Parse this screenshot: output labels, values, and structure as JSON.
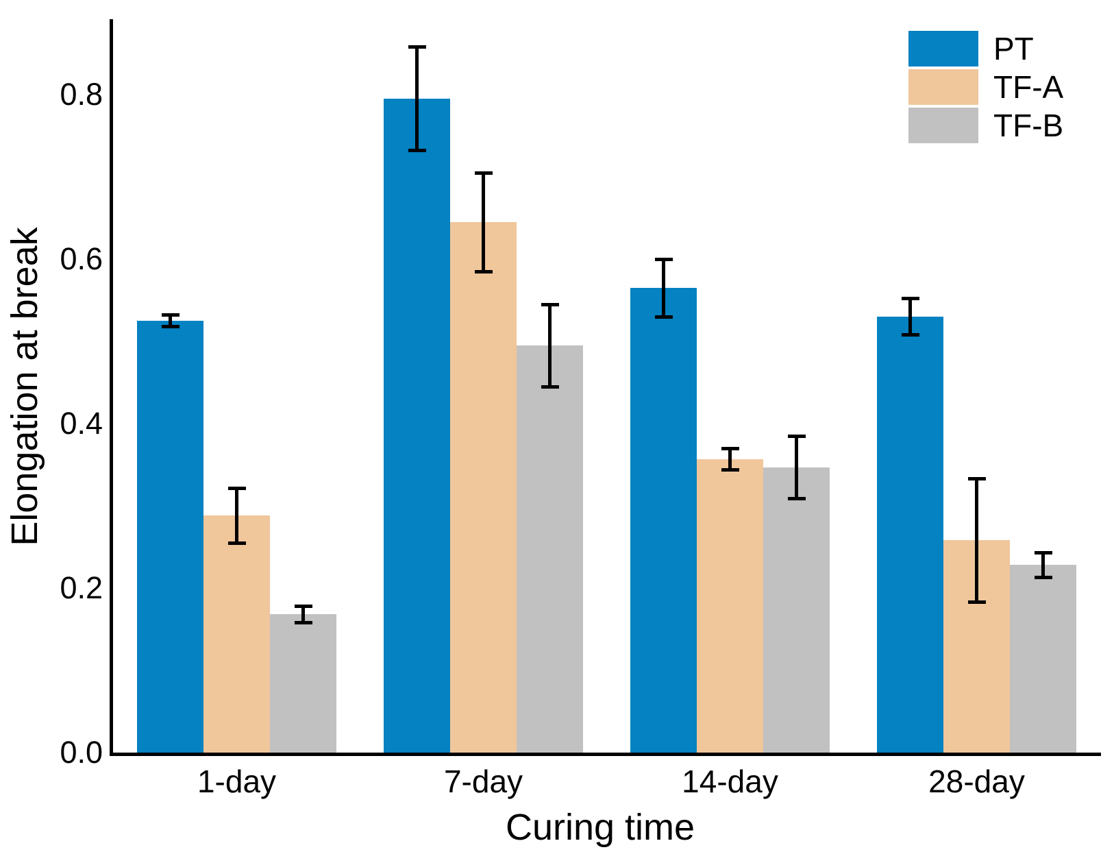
{
  "chart_data": {
    "type": "bar",
    "title": "",
    "xlabel": "Curing time",
    "ylabel": "Elongation at break",
    "categories": [
      "1-day",
      "7-day",
      "14-day",
      "28-day"
    ],
    "series": [
      {
        "name": "PT",
        "color": "#0482C1",
        "values": [
          0.525,
          0.795,
          0.565,
          0.53
        ],
        "errors": [
          0.007,
          0.063,
          0.035,
          0.022
        ]
      },
      {
        "name": "TF-A",
        "color": "#F0C69B",
        "values": [
          0.288,
          0.645,
          0.357,
          0.258
        ],
        "errors": [
          0.033,
          0.06,
          0.013,
          0.075
        ]
      },
      {
        "name": "TF-B",
        "color": "#C1C1C1",
        "values": [
          0.168,
          0.495,
          0.347,
          0.228
        ],
        "errors": [
          0.01,
          0.05,
          0.038,
          0.015
        ]
      }
    ],
    "ylim": [
      0.0,
      0.9
    ],
    "yticks": [
      0.0,
      0.2,
      0.4,
      0.6,
      0.8
    ],
    "ytick_labels": [
      "0.0",
      "0.2",
      "0.4",
      "0.6",
      "0.8"
    ],
    "grid": false,
    "error_bars": true,
    "legend_position": "upper right",
    "axis_color": "#000000",
    "background_color": "#FFFFFF"
  },
  "legend": {
    "items": [
      {
        "label": "PT"
      },
      {
        "label": "TF-A"
      },
      {
        "label": "TF-B"
      }
    ]
  }
}
